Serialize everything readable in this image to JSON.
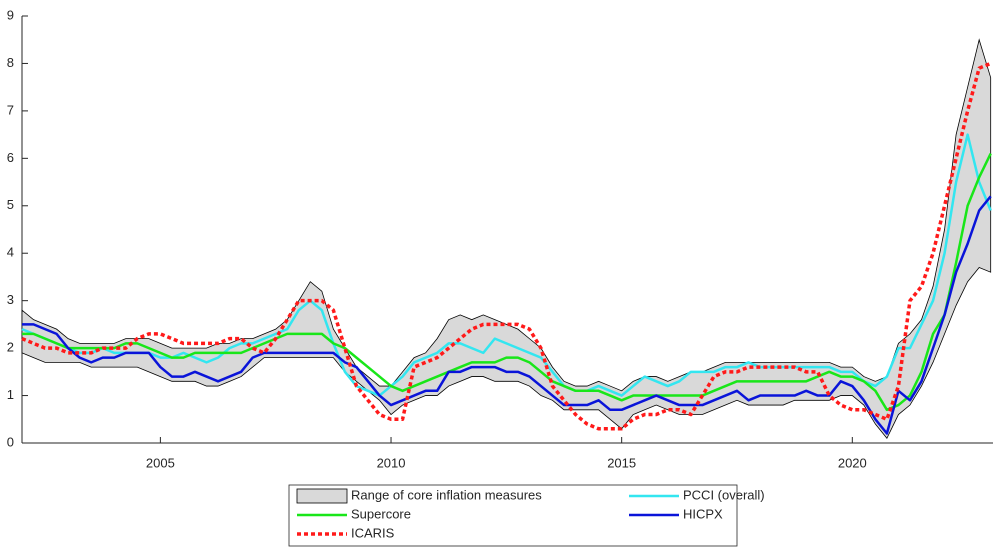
{
  "chart_data": {
    "type": "line",
    "x": [
      2002,
      2002.25,
      2002.5,
      2002.75,
      2003,
      2003.25,
      2003.5,
      2003.75,
      2004,
      2004.25,
      2004.5,
      2004.75,
      2005,
      2005.25,
      2005.5,
      2005.75,
      2006,
      2006.25,
      2006.5,
      2006.75,
      2007,
      2007.25,
      2007.5,
      2007.75,
      2008,
      2008.25,
      2008.5,
      2008.75,
      2009,
      2009.25,
      2009.5,
      2009.75,
      2010,
      2010.25,
      2010.5,
      2010.75,
      2011,
      2011.25,
      2011.5,
      2011.75,
      2012,
      2012.25,
      2012.5,
      2012.75,
      2013,
      2013.25,
      2013.5,
      2013.75,
      2014,
      2014.25,
      2014.5,
      2014.75,
      2015,
      2015.25,
      2015.5,
      2015.75,
      2016,
      2016.25,
      2016.5,
      2016.75,
      2017,
      2017.25,
      2017.5,
      2017.75,
      2018,
      2018.25,
      2018.5,
      2018.75,
      2019,
      2019.25,
      2019.5,
      2019.75,
      2020,
      2020.25,
      2020.5,
      2020.75,
      2021,
      2021.25,
      2021.5,
      2021.75,
      2022,
      2022.25,
      2022.5,
      2022.75,
      2023
    ],
    "band": {
      "name": "Range of core inflation measures",
      "color": "#d9d9d9",
      "lower": [
        1.9,
        1.8,
        1.7,
        1.7,
        1.7,
        1.7,
        1.6,
        1.6,
        1.6,
        1.6,
        1.6,
        1.5,
        1.4,
        1.3,
        1.3,
        1.3,
        1.2,
        1.2,
        1.3,
        1.4,
        1.6,
        1.8,
        1.8,
        1.8,
        1.8,
        1.8,
        1.8,
        1.8,
        1.5,
        1.3,
        1.1,
        0.9,
        0.6,
        0.8,
        0.9,
        1.0,
        1.0,
        1.2,
        1.3,
        1.4,
        1.4,
        1.3,
        1.3,
        1.3,
        1.2,
        1.0,
        0.9,
        0.7,
        0.7,
        0.7,
        0.7,
        0.5,
        0.3,
        0.6,
        0.7,
        0.8,
        0.7,
        0.6,
        0.6,
        0.6,
        0.7,
        0.8,
        0.9,
        0.8,
        0.8,
        0.8,
        0.8,
        0.9,
        0.9,
        0.9,
        0.9,
        1.0,
        1.0,
        0.8,
        0.4,
        0.1,
        0.6,
        0.8,
        1.2,
        1.7,
        2.3,
        2.9,
        3.4,
        3.7,
        3.6
      ],
      "upper": [
        2.8,
        2.6,
        2.5,
        2.4,
        2.2,
        2.1,
        2.1,
        2.1,
        2.1,
        2.2,
        2.2,
        2.2,
        2.1,
        2.0,
        2.0,
        2.0,
        2.0,
        2.1,
        2.1,
        2.2,
        2.2,
        2.3,
        2.4,
        2.6,
        3.0,
        3.4,
        3.2,
        2.4,
        2.0,
        1.6,
        1.4,
        1.2,
        1.2,
        1.5,
        1.8,
        1.9,
        2.2,
        2.6,
        2.7,
        2.6,
        2.7,
        2.6,
        2.5,
        2.4,
        2.2,
        2.0,
        1.6,
        1.3,
        1.2,
        1.2,
        1.3,
        1.2,
        1.1,
        1.3,
        1.4,
        1.4,
        1.3,
        1.4,
        1.5,
        1.5,
        1.6,
        1.7,
        1.7,
        1.7,
        1.7,
        1.7,
        1.7,
        1.7,
        1.7,
        1.7,
        1.7,
        1.6,
        1.6,
        1.4,
        1.3,
        1.4,
        2.1,
        2.3,
        2.6,
        3.3,
        4.5,
        6.5,
        7.5,
        8.5,
        7.7
      ]
    },
    "series": [
      {
        "name": "PCCI (overall)",
        "color": "#33e6f0",
        "width": 2.5,
        "dash": "solid",
        "values": [
          2.4,
          2.3,
          2.2,
          2.1,
          2.0,
          1.9,
          1.9,
          2.0,
          1.9,
          1.9,
          1.9,
          1.9,
          1.8,
          1.8,
          1.9,
          1.8,
          1.7,
          1.8,
          2.0,
          2.1,
          2.1,
          2.2,
          2.3,
          2.4,
          2.8,
          3.0,
          2.8,
          2.1,
          1.5,
          1.2,
          1.1,
          1.0,
          1.2,
          1.4,
          1.7,
          1.8,
          1.9,
          2.1,
          2.1,
          2.0,
          1.9,
          2.2,
          2.1,
          2.0,
          1.9,
          1.8,
          1.5,
          1.2,
          1.1,
          1.1,
          1.2,
          1.1,
          1.0,
          1.2,
          1.4,
          1.3,
          1.2,
          1.3,
          1.5,
          1.5,
          1.5,
          1.6,
          1.6,
          1.7,
          1.6,
          1.6,
          1.6,
          1.6,
          1.6,
          1.6,
          1.6,
          1.5,
          1.5,
          1.3,
          1.2,
          1.4,
          2.0,
          2.0,
          2.5,
          3.0,
          4.0,
          5.5,
          6.5,
          5.5,
          4.9
        ]
      },
      {
        "name": "Supercore",
        "color": "#19e619",
        "width": 2.5,
        "dash": "solid",
        "values": [
          2.3,
          2.3,
          2.2,
          2.1,
          2.0,
          2.0,
          2.0,
          2.0,
          2.0,
          2.1,
          2.1,
          2.0,
          1.9,
          1.8,
          1.8,
          1.9,
          1.9,
          1.9,
          1.9,
          1.9,
          2.0,
          2.1,
          2.2,
          2.3,
          2.3,
          2.3,
          2.3,
          2.1,
          2.0,
          1.8,
          1.6,
          1.4,
          1.2,
          1.1,
          1.2,
          1.3,
          1.4,
          1.5,
          1.6,
          1.7,
          1.7,
          1.7,
          1.8,
          1.8,
          1.7,
          1.5,
          1.3,
          1.2,
          1.1,
          1.1,
          1.1,
          1.0,
          0.9,
          1.0,
          1.0,
          1.0,
          1.0,
          1.0,
          1.0,
          1.0,
          1.1,
          1.2,
          1.3,
          1.3,
          1.3,
          1.3,
          1.3,
          1.3,
          1.3,
          1.4,
          1.5,
          1.4,
          1.4,
          1.3,
          1.1,
          0.7,
          0.8,
          1.0,
          1.5,
          2.3,
          2.7,
          3.8,
          5.0,
          5.6,
          6.1
        ]
      },
      {
        "name": "HICPX",
        "color": "#0a14d9",
        "width": 2.5,
        "dash": "solid",
        "values": [
          2.5,
          2.5,
          2.4,
          2.3,
          2.0,
          1.8,
          1.7,
          1.8,
          1.8,
          1.9,
          1.9,
          1.9,
          1.6,
          1.4,
          1.4,
          1.5,
          1.4,
          1.3,
          1.4,
          1.5,
          1.8,
          1.9,
          1.9,
          1.9,
          1.9,
          1.9,
          1.9,
          1.9,
          1.7,
          1.6,
          1.3,
          1.0,
          0.8,
          0.9,
          1.0,
          1.1,
          1.1,
          1.5,
          1.5,
          1.6,
          1.6,
          1.6,
          1.5,
          1.5,
          1.4,
          1.2,
          1.0,
          0.8,
          0.8,
          0.8,
          0.9,
          0.7,
          0.7,
          0.8,
          0.9,
          1.0,
          0.9,
          0.8,
          0.8,
          0.8,
          0.9,
          1.0,
          1.1,
          0.9,
          1.0,
          1.0,
          1.0,
          1.0,
          1.1,
          1.0,
          1.0,
          1.3,
          1.2,
          0.9,
          0.5,
          0.2,
          1.1,
          0.9,
          1.3,
          2.0,
          2.7,
          3.6,
          4.2,
          4.9,
          5.2
        ]
      },
      {
        "name": "ICARIS",
        "color": "#ff1a1a",
        "width": 3.5,
        "dash": "dotted",
        "values": [
          2.2,
          2.1,
          2.0,
          2.0,
          1.9,
          1.9,
          1.9,
          2.0,
          2.0,
          2.0,
          2.2,
          2.3,
          2.3,
          2.2,
          2.1,
          2.1,
          2.1,
          2.1,
          2.2,
          2.2,
          2.0,
          1.9,
          2.2,
          2.6,
          3.0,
          3.0,
          3.0,
          2.8,
          2.0,
          1.2,
          0.9,
          0.6,
          0.5,
          0.5,
          1.6,
          1.7,
          1.8,
          2.0,
          2.2,
          2.4,
          2.5,
          2.5,
          2.5,
          2.5,
          2.4,
          2.0,
          1.2,
          0.9,
          0.6,
          0.4,
          0.3,
          0.3,
          0.3,
          0.5,
          0.6,
          0.6,
          0.7,
          0.7,
          0.6,
          1.0,
          1.4,
          1.5,
          1.5,
          1.6,
          1.6,
          1.6,
          1.6,
          1.6,
          1.5,
          1.5,
          1.0,
          0.8,
          0.7,
          0.7,
          0.6,
          0.5,
          1.2,
          3.0,
          3.3,
          4.0,
          5.0,
          6.0,
          7.0,
          7.9,
          8.0
        ]
      }
    ],
    "xlim": [
      2002,
      2023.05
    ],
    "xticks": [
      2005,
      2010,
      2015,
      2020
    ],
    "ylim": [
      0,
      9
    ],
    "yticks": [
      0,
      1,
      2,
      3,
      4,
      5,
      6,
      7,
      8,
      9
    ],
    "legend": "bottom"
  }
}
